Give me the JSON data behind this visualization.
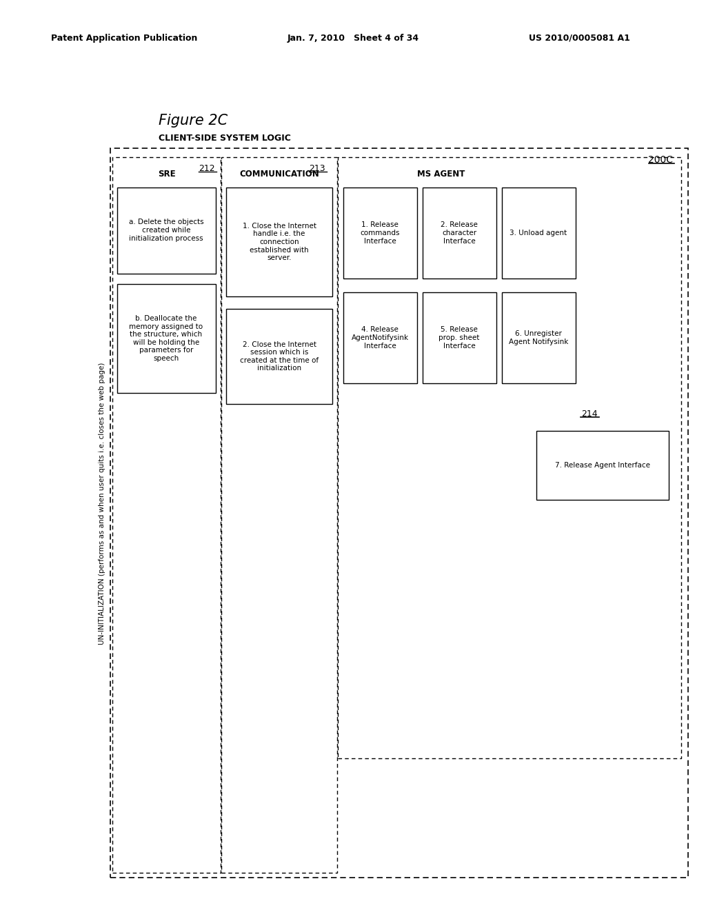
{
  "bg_color": "#ffffff",
  "header_left": "Patent Application Publication",
  "header_mid": "Jan. 7, 2010   Sheet 4 of 34",
  "header_right": "US 2010/0005081 A1",
  "figure_label": "Figure 2C",
  "figure_sublabel": "CLIENT-SIDE SYSTEM LOGIC",
  "uninit_label": "UN-INITIALIZATION (performs as and when user quits i.e. closes the web page)",
  "label_200C": "200C",
  "label_212": "212",
  "label_213": "213",
  "label_214": "214",
  "col_sre": "SRE",
  "col_comm": "COMMUNICATION",
  "col_msagent": "MS AGENT",
  "sre_box1": "a. Delete the objects\ncreated while\ninitialization process",
  "sre_box2": "b. Deallocate the\nmemory assigned to\nthe structure, which\nwill be holding the\nparameters for\nspeech",
  "comm_box1": "1. Close the Internet\nhandle i.e. the\nconnection\nestablished with\nserver.",
  "comm_box2": "2. Close the Internet\nsession which is\ncreated at the time of\ninitialization",
  "ms_row1_box1": "1. Release\ncommands\nInterface",
  "ms_row1_box2": "2. Release\ncharacter\nInterface",
  "ms_row1_box3": "3. Unload agent",
  "ms_row2_box1": "4. Release\nAgentNotifysink\nInterface",
  "ms_row2_box2": "5. Release\nprop. sheet\nInterface",
  "ms_row2_box3": "6. Unregister\nAgent Notifysink",
  "ms_bottom_box": "7. Release Agent Interface"
}
